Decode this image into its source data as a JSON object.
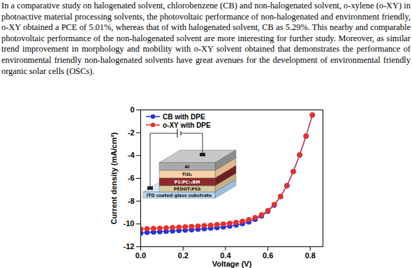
{
  "text": "In a comparative study on halogenated solvent, chlorobenzene (CB) and non-halogenated solvent, o-xylene (o-XY) in photoactive material processing solvents, the photovoltaic performance of non-halogenated and environment friendly, o-XY obtained a PCE of 5.01%, whereas that of with halogenated solvent, CB as 5.29%. This nearby and comparable photovoltaic performance of the non-halogenated solvent are more interesting for further study. Moreover, as similar trend improvement in morphology and mobility with o-XY solvent obtained that demonstrates the performance of environmental friendly non-halogenated solvents have great avenues for the development of environmental friendly organic solar cells (OSCs).",
  "chart_data": {
    "type": "line",
    "x_label": "Voltage (V)",
    "y_label": "Current density (mA/cm²)",
    "x": [
      0,
      0.03,
      0.06,
      0.09,
      0.12,
      0.15,
      0.18,
      0.21,
      0.24,
      0.27,
      0.3,
      0.33,
      0.36,
      0.39,
      0.42,
      0.45,
      0.48,
      0.51,
      0.54,
      0.57,
      0.6,
      0.63,
      0.66,
      0.69,
      0.72,
      0.75,
      0.78,
      0.81
    ],
    "series": [
      {
        "name": "CB with DPE",
        "color": "#2233dd",
        "marker": "circle",
        "line_style": "solid",
        "values": [
          -10.8,
          -10.75,
          -10.72,
          -10.68,
          -10.65,
          -10.62,
          -10.58,
          -10.55,
          -10.51,
          -10.47,
          -10.43,
          -10.38,
          -10.33,
          -10.27,
          -10.19,
          -10.1,
          -9.98,
          -9.82,
          -9.6,
          -9.3,
          -8.9,
          -8.35,
          -7.6,
          -6.65,
          -5.4,
          -3.95,
          -2.3,
          -0.45
        ]
      },
      {
        "name": "o-XY with DPE",
        "color": "#e8302a",
        "marker": "circle",
        "line_style": "solid",
        "values": [
          -10.45,
          -10.42,
          -10.4,
          -10.37,
          -10.34,
          -10.31,
          -10.28,
          -10.25,
          -10.22,
          -10.19,
          -10.15,
          -10.11,
          -10.06,
          -10.01,
          -9.95,
          -9.87,
          -9.77,
          -9.63,
          -9.45,
          -9.2,
          -8.83,
          -8.3,
          -7.58,
          -6.64,
          -5.4,
          -3.95,
          -2.3,
          -0.45
        ]
      }
    ],
    "xlim": [
      0,
      0.86
    ],
    "xticks": [
      {
        "value": 0,
        "label": "0.0"
      },
      0.2,
      0.4,
      0.6,
      0.8
    ],
    "ylim": [
      -12,
      0
    ],
    "yticks": [
      -12,
      -10,
      -8,
      -6,
      -4,
      -2,
      0
    ],
    "grid": false,
    "legend": "top-left"
  },
  "inset": {
    "layers": [
      "Al",
      "TiO₂",
      "P1:PC₇₁BM",
      "PEDOT:PSS",
      "ITO coated glass substrate"
    ]
  }
}
